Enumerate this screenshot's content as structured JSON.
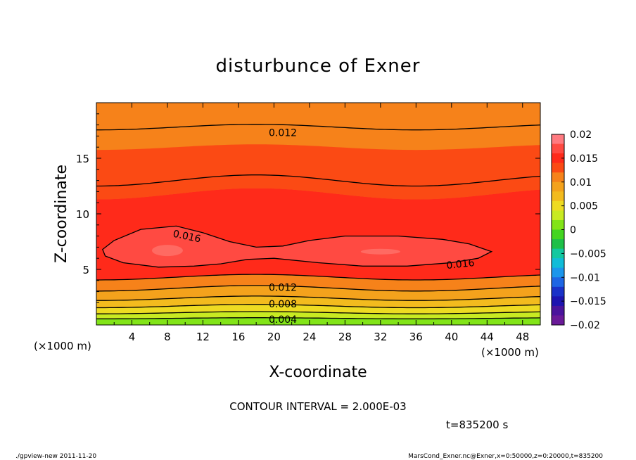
{
  "chart_data": {
    "type": "heatmap",
    "subtype": "filled-contour",
    "title": "disturbunce of Exner",
    "xlabel": "X-coordinate",
    "ylabel": "Z-coordinate",
    "x_unit": "(×1000 m)",
    "y_unit": "(×1000 m)",
    "xlim": [
      0,
      50
    ],
    "ylim": [
      0,
      20
    ],
    "x_ticks": [
      4,
      8,
      12,
      16,
      20,
      24,
      28,
      32,
      36,
      40,
      44,
      48
    ],
    "y_ticks": [
      5,
      10,
      15
    ],
    "contour_interval_label": "CONTOUR INTERVAL = 2.000E-03",
    "time_label": "t=835200 s",
    "contour_labels": [
      {
        "text": "0.012",
        "x": 21.0,
        "z": 17.3
      },
      {
        "text": "0.016",
        "x": 10.2,
        "z": 8.0
      },
      {
        "text": "0.016",
        "x": 41.0,
        "z": 5.5
      },
      {
        "text": "0.012",
        "x": 21.0,
        "z": 3.4
      },
      {
        "text": "0.008",
        "x": 21.0,
        "z": 1.9
      },
      {
        "text": "0.004",
        "x": 21.0,
        "z": 0.5
      }
    ],
    "profile_at_x_25": [
      {
        "z": 0.0,
        "value": 0.002
      },
      {
        "z": 0.6,
        "value": 0.004
      },
      {
        "z": 1.1,
        "value": 0.006
      },
      {
        "z": 1.7,
        "value": 0.008
      },
      {
        "z": 2.4,
        "value": 0.01
      },
      {
        "z": 3.3,
        "value": 0.012
      },
      {
        "z": 4.2,
        "value": 0.014
      },
      {
        "z": 6.5,
        "value": 0.016
      },
      {
        "z": 11.8,
        "value": 0.014
      },
      {
        "z": 17.5,
        "value": 0.012
      },
      {
        "z": 20.0,
        "value": 0.011
      }
    ],
    "colorbar": {
      "ticks": [
        "0.02",
        "0.015",
        "0.01",
        "0.005",
        "0",
        "−0.005",
        "−0.01",
        "−0.015",
        "−0.02"
      ],
      "colors": [
        "#ff7a80",
        "#ff4a42",
        "#ff2a1a",
        "#fb4a14",
        "#f6821a",
        "#f4a21c",
        "#f3bb1e",
        "#eedb22",
        "#c8ea22",
        "#82e418",
        "#43d520",
        "#1ec048",
        "#12c8a0",
        "#10bcd8",
        "#1b96ec",
        "#1e66e4",
        "#1a32c8",
        "#1d14b0",
        "#4a149c",
        "#6a1a98"
      ]
    }
  },
  "footer": {
    "left": "./gpview-new   2011-11-20",
    "right": "MarsCond_Exner.nc@Exner,x=0:50000,z=0:20000,t=835200"
  }
}
